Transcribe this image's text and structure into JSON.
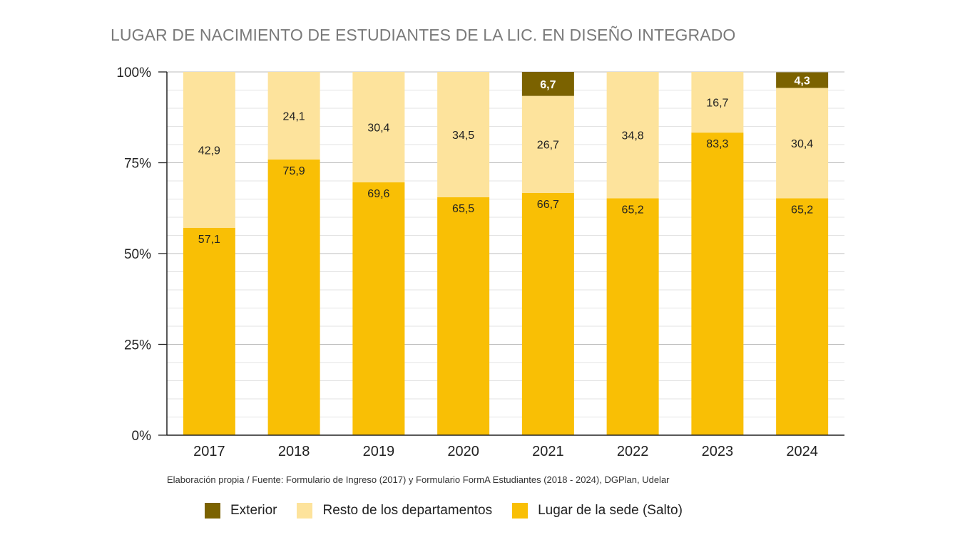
{
  "chart_data": {
    "type": "bar",
    "stacked": true,
    "title": "LUGAR DE NACIMIENTO DE ESTUDIANTES DE LA LIC. EN DISEÑO INTEGRADO",
    "source": "Elaboración propia / Fuente: Formulario de Ingreso (2017) y Formulario FormA Estudiantes (2018 - 2024), DGPlan, Udelar",
    "categories": [
      "2017",
      "2018",
      "2019",
      "2020",
      "2021",
      "2022",
      "2023",
      "2024"
    ],
    "ylim": [
      0,
      100
    ],
    "yticks": [
      0,
      25,
      50,
      75,
      100
    ],
    "ytick_labels": [
      "0%",
      "25%",
      "50%",
      "75%",
      "100%"
    ],
    "grid": true,
    "legend_position": "bottom",
    "series": [
      {
        "name": "Lugar de la sede (Salto)",
        "color": "#F9BF05",
        "values": [
          57.1,
          75.9,
          69.6,
          65.5,
          66.7,
          65.2,
          83.3,
          65.2
        ],
        "labels": [
          "57,1",
          "75,9",
          "69,6",
          "65,5",
          "66,7",
          "65,2",
          "83,3",
          "65,2"
        ]
      },
      {
        "name": "Resto de los departamentos",
        "color": "#FDE39C",
        "values": [
          42.9,
          24.1,
          30.4,
          34.5,
          26.7,
          34.8,
          16.7,
          30.4
        ],
        "labels": [
          "42,9",
          "24,1",
          "30,4",
          "34,5",
          "26,7",
          "34,8",
          "16,7",
          "30,4"
        ]
      },
      {
        "name": "Exterior",
        "color": "#7B6200",
        "values": [
          0,
          0,
          0,
          0,
          6.7,
          0,
          0,
          4.3
        ],
        "labels": [
          "",
          "",
          "",
          "",
          "6,7",
          "",
          "",
          "4,3"
        ]
      }
    ],
    "legend_order": [
      "Exterior",
      "Resto de los departamentos",
      "Lugar de la sede (Salto)"
    ]
  }
}
